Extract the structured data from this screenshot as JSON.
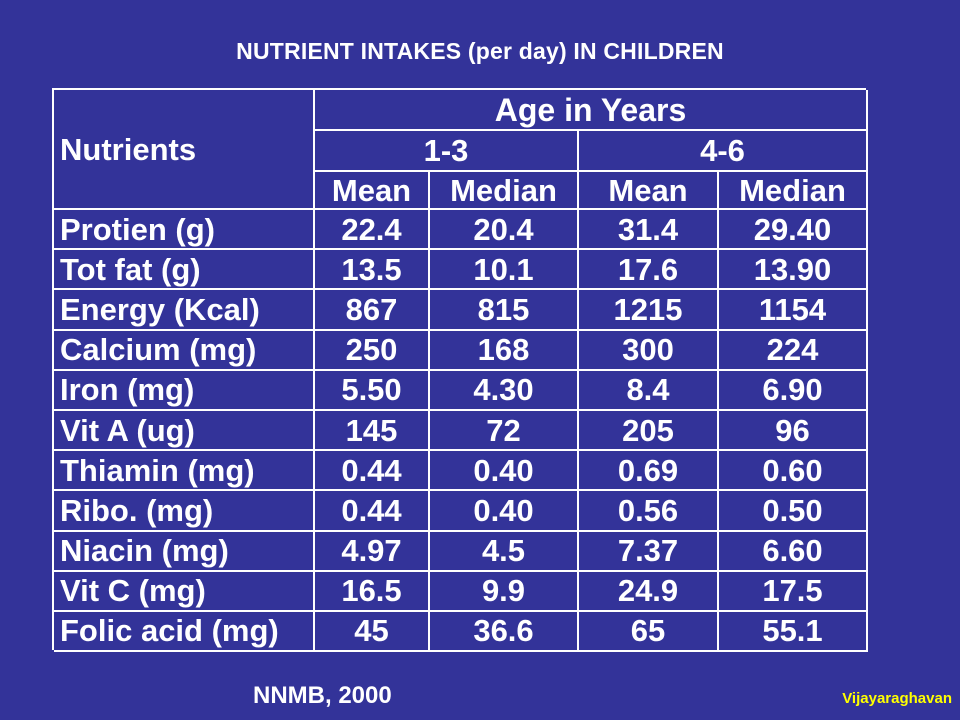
{
  "slide": {
    "title": "NUTRIENT  INTAKES (per day) IN CHILDREN",
    "source": "NNMB, 2000",
    "credit": "Vijayaraghavan"
  },
  "table": {
    "row_header": "Nutrients",
    "group_header": "Age in Years",
    "age_groups": [
      "1-3",
      "4-6"
    ],
    "subheaders": [
      "Mean",
      "Median",
      "Mean",
      "Median"
    ],
    "rows": [
      {
        "label": "Protien (g)",
        "values": [
          "22.4",
          "20.4",
          "31.4",
          "29.40"
        ]
      },
      {
        "label": "Tot fat (g)",
        "values": [
          "13.5",
          "10.1",
          "17.6",
          "13.90"
        ]
      },
      {
        "label": "Energy (Kcal)",
        "values": [
          "867",
          "815",
          "1215",
          "1154"
        ]
      },
      {
        "label": "Calcium (mg)",
        "values": [
          "250",
          "168",
          "300",
          "224"
        ]
      },
      {
        "label": "Iron (mg)",
        "values": [
          "5.50",
          "4.30",
          "8.4",
          "6.90"
        ]
      },
      {
        "label": "Vit A (ug)",
        "values": [
          "145",
          "72",
          "205",
          "96"
        ]
      },
      {
        "label": "Thiamin (mg)",
        "values": [
          "0.44",
          "0.40",
          "0.69",
          "0.60"
        ]
      },
      {
        "label": "Ribo. (mg)",
        "values": [
          "0.44",
          "0.40",
          "0.56",
          "0.50"
        ]
      },
      {
        "label": "Niacin (mg)",
        "values": [
          "4.97",
          "4.5",
          "7.37",
          "6.60"
        ]
      },
      {
        "label": "Vit C (mg)",
        "values": [
          "16.5",
          "9.9",
          "24.9",
          "17.5"
        ]
      },
      {
        "label": "Folic acid (mg)",
        "values": [
          "45",
          "36.6",
          "65",
          "55.1"
        ]
      }
    ]
  },
  "colors": {
    "background": "#333399",
    "text": "#ffffff",
    "credit": "#ffff00"
  }
}
